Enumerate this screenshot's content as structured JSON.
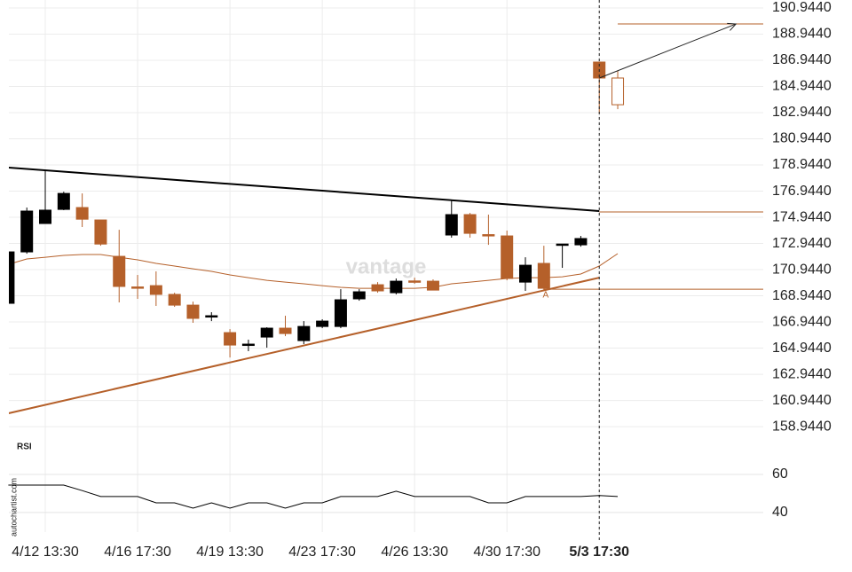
{
  "chart_data": [
    {
      "type": "candlestick",
      "categories": [
        null,
        null,
        "4/12 13:30",
        null,
        null,
        null,
        null,
        "4/16 17:30",
        null,
        null,
        null,
        null,
        "4/19 13:30",
        null,
        null,
        null,
        null,
        "4/23 17:30",
        null,
        null,
        null,
        null,
        "4/26 13:30",
        null,
        null,
        null,
        null,
        "4/30 17:30",
        null,
        null,
        null,
        null,
        "5/3 17:30",
        null
      ],
      "open": [
        168.37,
        172.3,
        174.47,
        175.55,
        175.69,
        174.74,
        171.96,
        169.62,
        169.72,
        169.05,
        168.23,
        167.35,
        166.13,
        165.18,
        165.79,
        166.47,
        165.52,
        166.6,
        166.6,
        168.71,
        169.79,
        169.18,
        170.08,
        170.06,
        173.59,
        175.15,
        173.62,
        173.52,
        169.99,
        171.42,
        172.84,
        172.84,
        186.81,
        185.59
      ],
      "high": [
        172.3,
        175.69,
        178.5,
        176.9,
        176.77,
        174.74,
        173.99,
        170.54,
        170.81,
        169.18,
        168.5,
        167.69,
        166.4,
        165.59,
        166.54,
        167.42,
        167.01,
        167.15,
        169.45,
        169.45,
        169.99,
        170.27,
        170.33,
        170.2,
        176.23,
        175.28,
        175.15,
        173.93,
        171.89,
        172.77,
        172.9,
        173.52,
        186.81,
        186.13
      ],
      "low": [
        168.37,
        172.16,
        174.47,
        175.49,
        174.2,
        172.77,
        168.44,
        168.71,
        168.17,
        168.1,
        166.88,
        167.01,
        164.23,
        164.71,
        164.98,
        165.86,
        165.25,
        166.47,
        166.47,
        168.57,
        169.18,
        169.05,
        169.86,
        169.38,
        173.39,
        173.39,
        172.84,
        170.13,
        169.32,
        169.38,
        171.08,
        172.7,
        182.88,
        183.21
      ],
      "close": [
        172.3,
        175.42,
        175.49,
        176.77,
        174.8,
        172.9,
        169.66,
        169.55,
        169.05,
        168.23,
        167.22,
        167.42,
        165.18,
        165.25,
        166.47,
        166.06,
        166.6,
        167.01,
        168.64,
        169.25,
        169.32,
        170.06,
        170.03,
        169.38,
        175.15,
        173.72,
        173.59,
        170.27,
        171.28,
        169.52,
        172.9,
        173.32,
        185.59,
        183.55
      ],
      "up_color": "#000000",
      "down_color": "#b5602a",
      "moving_average": {
        "color": "#b5602a",
        "values": [
          171.35,
          171.76,
          171.89,
          172.03,
          172.1,
          172.1,
          171.89,
          171.69,
          171.42,
          171.22,
          171.01,
          170.81,
          170.54,
          170.33,
          170.13,
          169.99,
          169.86,
          169.72,
          169.59,
          169.52,
          169.52,
          169.52,
          169.52,
          169.59,
          169.86,
          169.99,
          170.13,
          170.27,
          170.33,
          170.33,
          170.4,
          170.61,
          171.22,
          172.17
        ]
      },
      "trend_lines": [
        {
          "color": "#000000",
          "x": [
            0,
            32
          ],
          "y": [
            178.74,
            175.42
          ]
        },
        {
          "color": "#b5602a",
          "x": [
            0,
            32
          ],
          "y": [
            159.96,
            170.33
          ]
        }
      ],
      "levels": [
        {
          "value": 175.35,
          "x": [
            32,
            40.88
          ]
        },
        {
          "value": 169.45,
          "x": [
            29,
            40.88
          ]
        },
        {
          "value": 189.72,
          "x": [
            33,
            40.88
          ]
        }
      ],
      "arrow": {
        "x": [
          32,
          39.4
        ],
        "y": [
          185.59,
          189.72
        ]
      },
      "annotation": {
        "text": "A",
        "x": 29.1,
        "y": 169.0
      },
      "cursor_x": 32,
      "watermark": "vantage",
      "xlim": [
        0,
        40.88
      ],
      "ylim": [
        158.0,
        191.554
      ],
      "yticks": [
        {
          "value": 158.944,
          "label": "158.9440"
        },
        {
          "value": 160.944,
          "label": "160.9440"
        },
        {
          "value": 162.944,
          "label": "162.9440"
        },
        {
          "value": 164.944,
          "label": "164.9440"
        },
        {
          "value": 166.944,
          "label": "166.9440"
        },
        {
          "value": 168.944,
          "label": "168.9440"
        },
        {
          "value": 170.944,
          "label": "170.9440"
        },
        {
          "value": 172.944,
          "label": "172.9440"
        },
        {
          "value": 174.944,
          "label": "174.9440"
        },
        {
          "value": 176.944,
          "label": "176.9440"
        },
        {
          "value": 178.944,
          "label": "178.9440"
        },
        {
          "value": 180.944,
          "label": "180.9440"
        },
        {
          "value": 182.944,
          "label": "182.9440"
        },
        {
          "value": 184.944,
          "label": "184.9440"
        },
        {
          "value": 186.944,
          "label": "186.9440"
        },
        {
          "value": 188.944,
          "label": "188.9440"
        },
        {
          "value": 190.944,
          "label": "190.9440"
        }
      ],
      "grid": true
    },
    {
      "type": "line",
      "title": "RSI",
      "source": "autochartist.com",
      "series": [
        {
          "color": "#000000",
          "values": [
            54.4,
            54.4,
            54.4,
            54.4,
            51.5,
            48.4,
            48.4,
            48.4,
            45.1,
            45.1,
            42.3,
            45.1,
            42.3,
            45.1,
            45.1,
            42.3,
            45.1,
            45.1,
            48.4,
            48.4,
            48.4,
            51.2,
            48.4,
            48.4,
            48.4,
            48.4,
            45.1,
            45.1,
            48.4,
            48.4,
            48.4,
            48.4,
            48.9,
            48.4
          ]
        }
      ],
      "xlim": [
        0,
        40.88
      ],
      "ylim": [
        35.3,
        64.65
      ],
      "yticks": [
        40,
        60
      ],
      "grid": true
    }
  ]
}
